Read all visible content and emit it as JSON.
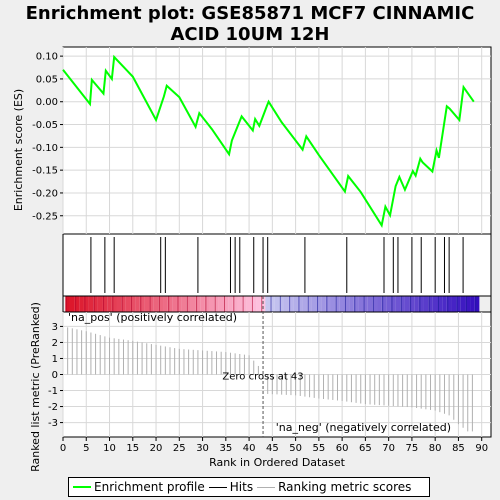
{
  "chart_data": {
    "type": "line",
    "title": "Enrichment plot: GSE85871 MCF7 CINNAMIC ACID 10UM 12H",
    "xlabel": "Rank in Ordered Dataset",
    "top_ylabel": "Enrichment score (ES)",
    "bottom_ylabel": "Ranked list metric (PreRanked)",
    "x_range": [
      0,
      92
    ],
    "x_ticks": [
      0,
      5,
      10,
      15,
      20,
      25,
      30,
      35,
      40,
      45,
      50,
      55,
      60,
      65,
      70,
      75,
      80,
      85,
      90
    ],
    "es_range": [
      -0.29,
      0.12
    ],
    "es_ticks": [
      -0.25,
      -0.2,
      -0.15,
      -0.1,
      -0.05,
      0.0,
      0.05,
      0.1
    ],
    "metric_range": [
      -3.9,
      3.9
    ],
    "metric_ticks": [
      -3,
      -2,
      -1,
      0,
      1,
      2,
      3
    ],
    "series": [
      {
        "name": "Enrichment profile",
        "color": "#00ff00",
        "x": [
          0,
          5.8,
          6.2,
          8.7,
          9.2,
          10.5,
          11,
          15,
          20,
          21.7,
          22.3,
          25,
          28.5,
          29.3,
          32,
          35.7,
          36.3,
          38.4,
          40.8,
          41.3,
          42.2,
          43.8,
          44.2,
          47,
          51.5,
          52.3,
          55,
          60.6,
          61.3,
          64,
          68.5,
          69.3,
          70.3,
          71.5,
          72.3,
          73.5,
          75.2,
          75.8,
          76.8,
          77.3,
          79.4,
          80.3,
          80.8,
          82.5,
          83.1,
          85.2,
          86.1,
          88.3
        ],
        "y": [
          0.07,
          -0.005,
          0.048,
          0.018,
          0.068,
          0.05,
          0.098,
          0.055,
          -0.04,
          0.012,
          0.035,
          0.01,
          -0.055,
          -0.025,
          -0.06,
          -0.115,
          -0.085,
          -0.032,
          -0.063,
          -0.038,
          -0.053,
          -0.01,
          0.0,
          -0.045,
          -0.105,
          -0.076,
          -0.117,
          -0.197,
          -0.163,
          -0.198,
          -0.271,
          -0.23,
          -0.249,
          -0.185,
          -0.165,
          -0.193,
          -0.152,
          -0.162,
          -0.125,
          -0.133,
          -0.153,
          -0.107,
          -0.123,
          -0.01,
          -0.015,
          -0.04,
          0.032,
          0.0
        ]
      }
    ],
    "hits": [
      6,
      9,
      11,
      21,
      22,
      29,
      36,
      37,
      38,
      41,
      43,
      44,
      52,
      61,
      69,
      71,
      72,
      75,
      77,
      80,
      82,
      83,
      86
    ],
    "metric_profile": {
      "x": [
        0,
        5,
        10,
        15,
        20,
        25,
        30,
        35,
        40,
        43,
        43.01,
        50,
        55,
        60,
        65,
        70,
        75,
        80,
        83,
        85,
        87
      ],
      "y": [
        3.0,
        2.7,
        2.3,
        2.1,
        1.85,
        1.6,
        1.5,
        1.4,
        1.2,
        0.2,
        -1.2,
        -1.3,
        -1.5,
        -1.65,
        -1.85,
        -1.95,
        -2.05,
        -2.25,
        -2.55,
        -3.1,
        -3.55
      ]
    },
    "zero_cross": 43,
    "zero_cross_label": "Zero cross at 43",
    "pos_label": "'na_pos' (positively correlated)",
    "neg_label": "'na_neg' (negatively correlated)",
    "colors": {
      "es_line": "#00ff00",
      "hit": "#000000",
      "metric": "#b0b0b0",
      "pos_label": "#cc0000",
      "neg_label": "#0000aa",
      "zero_line": "#555555"
    }
  },
  "legend": {
    "items": [
      {
        "label": "Enrichment profile",
        "color": "#00ff00"
      },
      {
        "label": "Hits",
        "color": "#000000"
      },
      {
        "label": "Ranking metric scores",
        "color": "#b0b0b0"
      }
    ]
  }
}
